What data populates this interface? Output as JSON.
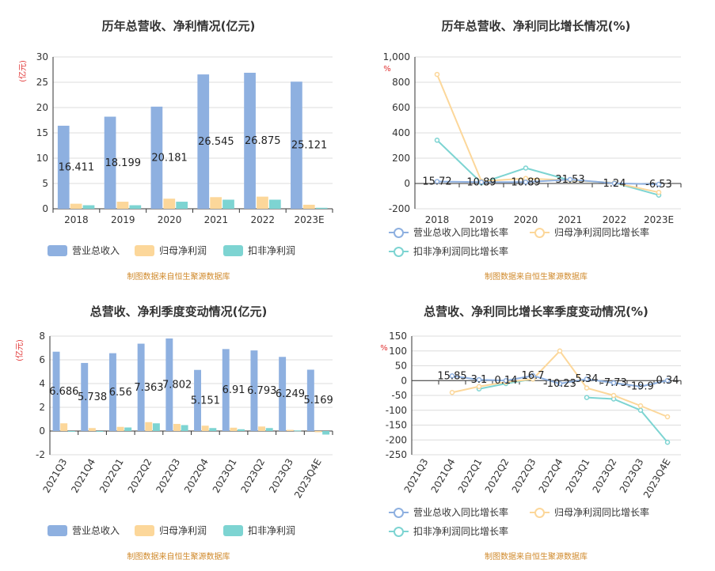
{
  "source_note": "制图数据来自恒生聚源数据库",
  "colors": {
    "revenue": "#8eb0e0",
    "net_profit": "#fcd79a",
    "deducted": "#7dd4d2"
  },
  "chart_data": [
    {
      "id": "annual_bar",
      "type": "bar",
      "title": "历年总营收、净利情况(亿元)",
      "ylabel": "(亿元)",
      "ylim": [
        0,
        30
      ],
      "yticks": [
        0,
        5,
        10,
        15,
        20,
        25,
        30
      ],
      "categories": [
        "2018",
        "2019",
        "2020",
        "2021",
        "2022",
        "2023E"
      ],
      "series": [
        {
          "name": "营业总收入",
          "values": [
            16.411,
            18.199,
            20.181,
            26.545,
            26.875,
            25.121
          ],
          "labels": [
            "16.411",
            "18.199",
            "20.181",
            "26.545",
            "26.875",
            "25.121"
          ]
        },
        {
          "name": "归母净利润",
          "values": [
            1.0,
            1.4,
            2.0,
            2.3,
            2.4,
            0.8
          ]
        },
        {
          "name": "扣非净利润",
          "values": [
            0.7,
            0.7,
            1.4,
            1.8,
            1.8,
            0.2
          ]
        }
      ]
    },
    {
      "id": "annual_line",
      "type": "line",
      "title": "历年总营收、净利同比增长情况(%)",
      "ylabel": "%",
      "ylim": [
        -200,
        1000
      ],
      "yticks": [
        -200,
        0,
        200,
        400,
        600,
        800,
        1000
      ],
      "ytick_labels": [
        "-200",
        "0",
        "200",
        "400",
        "600",
        "800",
        "1,000"
      ],
      "categories": [
        "2018",
        "2019",
        "2020",
        "2021",
        "2022",
        "2023E"
      ],
      "series": [
        {
          "name": "营业总收入同比增长率",
          "values": [
            15.72,
            10.89,
            10.89,
            31.53,
            1.24,
            -6.53
          ],
          "labels": [
            "15.72",
            "10.89",
            "10.89",
            "31.53",
            "1.24",
            "-6.53"
          ]
        },
        {
          "name": "归母净利润同比增长率",
          "values": [
            862,
            18,
            40,
            25,
            5,
            -70
          ]
        },
        {
          "name": "扣非净利润同比增长率",
          "values": [
            342,
            5,
            122,
            25,
            5,
            -92
          ]
        }
      ]
    },
    {
      "id": "quarter_bar",
      "type": "bar",
      "title": "总营收、净利季度变动情况(亿元)",
      "ylabel": "(亿元)",
      "ylim": [
        -2,
        8
      ],
      "yticks": [
        -2,
        0,
        2,
        4,
        6,
        8
      ],
      "categories": [
        "2021Q3",
        "2021Q4",
        "2022Q1",
        "2022Q2",
        "2022Q3",
        "2022Q4",
        "2023Q1",
        "2023Q2",
        "2023Q3",
        "2023Q4E"
      ],
      "series": [
        {
          "name": "营业总收入",
          "values": [
            6.686,
            5.738,
            6.56,
            7.363,
            7.802,
            5.151,
            6.91,
            6.793,
            6.249,
            5.169
          ],
          "labels": [
            "6.686",
            "5.738",
            "6.56",
            "7.363",
            "7.802",
            "5.151",
            "6.91",
            "6.793",
            "6.249",
            "5.169"
          ]
        },
        {
          "name": "归母净利润",
          "values": [
            0.65,
            0.25,
            0.35,
            0.75,
            0.6,
            0.45,
            0.28,
            0.38,
            0.1,
            -0.1
          ]
        },
        {
          "name": "扣非净利润",
          "values": [
            0.0,
            0.0,
            0.3,
            0.65,
            0.5,
            0.25,
            0.15,
            0.25,
            0.05,
            -0.3
          ]
        }
      ]
    },
    {
      "id": "quarter_line",
      "type": "line",
      "title": "总营收、净利同比增长率季度变动情况(%)",
      "ylabel": "%",
      "ylim": [
        -250,
        150
      ],
      "yticks": [
        -250,
        -200,
        -150,
        -100,
        -50,
        0,
        50,
        100,
        150
      ],
      "categories": [
        "2021Q3",
        "2021Q4",
        "2022Q1",
        "2022Q2",
        "2022Q3",
        "2022Q4",
        "2023Q1",
        "2023Q2",
        "2023Q3",
        "2023Q4E"
      ],
      "series": [
        {
          "name": "营业总收入同比增长率",
          "values": [
            null,
            15.85,
            3.1,
            0.14,
            16.7,
            -10.23,
            5.34,
            -7.73,
            -19.9,
            0.34
          ],
          "labels": [
            "",
            "15.85",
            "3.1",
            "0.14",
            "16.7",
            "-10.23",
            "5.34",
            "-7.73",
            "-19.9",
            "0.34"
          ]
        },
        {
          "name": "归母净利润同比增长率",
          "values": [
            null,
            -40,
            -20,
            -5,
            5,
            100,
            -25,
            -50,
            -85,
            -122
          ]
        },
        {
          "name": "扣非净利润同比增长率",
          "values": [
            null,
            null,
            -28,
            -10,
            5,
            null,
            -57,
            -62,
            -100,
            -208
          ]
        }
      ]
    }
  ]
}
